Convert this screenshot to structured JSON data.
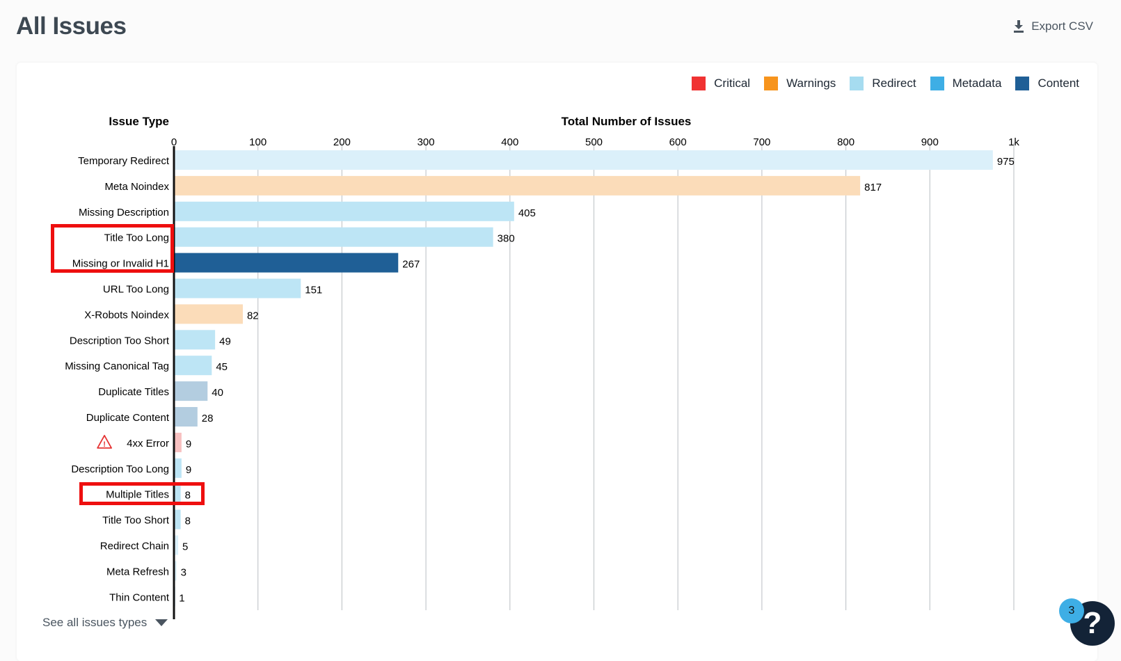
{
  "header": {
    "title": "All Issues",
    "export_label": "Export CSV",
    "export_icon": "download-icon"
  },
  "legend": [
    {
      "label": "Critical",
      "color": "#f03232"
    },
    {
      "label": "Warnings",
      "color": "#f7941d"
    },
    {
      "label": "Redirect",
      "color": "#a6dcf0"
    },
    {
      "label": "Metadata",
      "color": "#3eaee5"
    },
    {
      "label": "Content",
      "color": "#1f5f96"
    }
  ],
  "chart_data": {
    "type": "bar",
    "orientation": "horizontal",
    "ylabel": "Issue Type",
    "xlabel": "Total Number of Issues",
    "xlim": [
      0,
      1000
    ],
    "xticks": [
      "0",
      "100",
      "200",
      "300",
      "400",
      "500",
      "600",
      "700",
      "800",
      "900",
      "1k"
    ],
    "grid": true,
    "legend_position": "top-right",
    "categories": [
      "Temporary Redirect",
      "Meta Noindex",
      "Missing Description",
      "Title Too Long",
      "Missing or Invalid H1",
      "URL Too Long",
      "X-Robots Noindex",
      "Description Too Short",
      "Missing Canonical Tag",
      "Duplicate Titles",
      "Duplicate Content",
      "4xx Error",
      "Description Too Long",
      "Multiple Titles",
      "Title Too Short",
      "Redirect Chain",
      "Meta Refresh",
      "Thin Content"
    ],
    "values": [
      975,
      817,
      405,
      380,
      267,
      151,
      82,
      49,
      45,
      40,
      28,
      9,
      9,
      8,
      8,
      5,
      3,
      1
    ],
    "colors": [
      "#dbf0fa",
      "#fbdcb9",
      "#bde5f5",
      "#bde5f5",
      "#1f5f96",
      "#bde5f5",
      "#fbdcb9",
      "#bde5f5",
      "#bde5f5",
      "#b3cde0",
      "#b3cde0",
      "#f7c0c0",
      "#bde5f5",
      "#bde5f5",
      "#bde5f5",
      "#dbf0fa",
      "#dbf0fa",
      "#dbf0fa"
    ],
    "icons": {
      "4xx Error": "warning-triangle-icon"
    }
  },
  "highlights": [
    {
      "rows": [
        "Title Too Long",
        "Missing or Invalid H1"
      ],
      "color": "#ee0f0f"
    },
    {
      "rows": [
        "Multiple Titles"
      ],
      "color": "#ee0f0f"
    }
  ],
  "footer": {
    "see_all_label": "See all issues types"
  },
  "help": {
    "badge_count": "3",
    "label": "?"
  }
}
